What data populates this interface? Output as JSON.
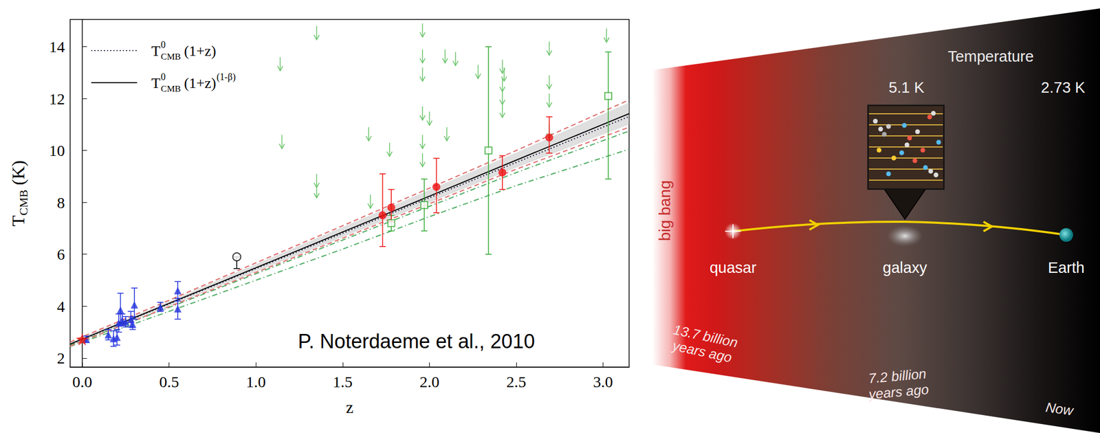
{
  "chart_data": {
    "type": "scatter",
    "x_label": "z",
    "y_label": {
      "base": "T",
      "sub": "CMB",
      "after": "(K)"
    },
    "annotation": "P. Noterdaeme et al., 2010",
    "xlim": [
      -0.07,
      3.15
    ],
    "xticks": [
      {
        "value": 0,
        "label": "0.0"
      },
      {
        "value": 0.5,
        "label": "0.5"
      },
      {
        "value": 1,
        "label": "1.0"
      },
      {
        "value": 1.5,
        "label": "1.5"
      },
      {
        "value": 2,
        "label": "2.0"
      },
      {
        "value": 2.5,
        "label": "2.5"
      },
      {
        "value": 3,
        "label": "3.0"
      }
    ],
    "ylim": [
      1.65,
      15.05
    ],
    "yticks": [
      2,
      4,
      6,
      8,
      10,
      12,
      14
    ],
    "grid": false,
    "legend": "upper left",
    "series": [
      {
        "type": "band",
        "color": "#b8b8b8",
        "x": [
          -0.07,
          0.5,
          1,
          1.5,
          2,
          2.5,
          3.15
        ],
        "low": [
          2.48,
          4.0,
          5.33,
          6.66,
          8.0,
          9.34,
          11.0
        ],
        "high": [
          2.6,
          4.2,
          5.62,
          7.05,
          8.48,
          9.92,
          11.85
        ]
      },
      {
        "type": "line",
        "line_style": "dashdot",
        "color": "#55b06a",
        "x": [
          -0.07,
          0.5,
          1,
          1.5,
          2,
          2.5,
          3.15
        ],
        "values": [
          2.5,
          3.95,
          5.25,
          6.55,
          7.85,
          9.15,
          10.75
        ]
      },
      {
        "type": "line",
        "line_style": "dashdot",
        "color": "#55b06a",
        "x": [
          -0.07,
          0.5,
          1,
          1.5,
          2,
          2.5,
          3.15
        ],
        "values": [
          2.45,
          3.8,
          5.0,
          6.2,
          7.45,
          8.65,
          10.05
        ]
      },
      {
        "type": "line",
        "line_style": "dashed",
        "color": "#e07070",
        "x": [
          -0.07,
          0.5,
          1,
          1.5,
          2,
          2.5,
          3.15
        ],
        "values": [
          2.62,
          4.23,
          5.67,
          7.1,
          8.55,
          10.0,
          11.95
        ]
      },
      {
        "type": "line",
        "line_style": "dashed",
        "color": "#e07070",
        "x": [
          -0.07,
          0.5,
          1,
          1.5,
          2,
          2.5,
          3.15
        ],
        "values": [
          2.46,
          3.98,
          5.3,
          6.62,
          7.95,
          9.28,
          10.9
        ]
      },
      {
        "type": "line",
        "line_style": "dotted",
        "color": "#1a1a40",
        "name": {
          "base": "T",
          "sup": "0",
          "sub": "CMB",
          "after": "(1+z)"
        },
        "x": [
          -0.07,
          0.5,
          1,
          1.5,
          2,
          2.5,
          3.15
        ],
        "values": [
          2.53,
          4.09,
          5.45,
          6.81,
          8.18,
          9.54,
          11.31
        ]
      },
      {
        "type": "line",
        "line_style": "solid",
        "color": "#000000",
        "name": {
          "base": "T",
          "sup": "0",
          "sub": "CMB",
          "after": "(1+z)",
          "after_sup": "(1-β)"
        },
        "x": [
          -0.07,
          0.5,
          1,
          1.5,
          2,
          2.5,
          3.15
        ],
        "values": [
          2.54,
          4.11,
          5.48,
          6.86,
          8.24,
          9.63,
          11.42
        ]
      },
      {
        "type": "upper_limit",
        "marker": "arrow",
        "color": "#6cc46c",
        "x": [
          1.14,
          1.15,
          1.35,
          1.35,
          1.35,
          1.65,
          1.66,
          1.77,
          1.96,
          1.96,
          1.96,
          1.96,
          1.96,
          1.96,
          2.0,
          2.09,
          2.1,
          2.15,
          2.28,
          2.42,
          2.43,
          2.42,
          2.42,
          2.42,
          2.69,
          2.69,
          2.69,
          2.69,
          3.02
        ],
        "values": [
          13.6,
          10.6,
          14.8,
          9.1,
          8.7,
          10.9,
          8.3,
          10.3,
          14.9,
          13.9,
          13.2,
          11.7,
          10.6,
          9.9,
          11.5,
          13.9,
          10.9,
          13.8,
          13.3,
          13.5,
          13.2,
          12.8,
          12.3,
          11.8,
          14.2,
          12.9,
          12.2,
          11.0,
          14.7
        ]
      },
      {
        "type": "scatter",
        "marker": "triangle",
        "color": "#2233dd",
        "x": [
          0.023,
          0.15,
          0.18,
          0.2,
          0.21,
          0.22,
          0.23,
          0.25,
          0.28,
          0.29,
          0.3,
          0.45,
          0.55,
          0.55
        ],
        "values": [
          2.72,
          2.9,
          2.75,
          2.8,
          3.35,
          3.85,
          3.45,
          3.4,
          3.5,
          3.3,
          4.05,
          3.97,
          3.9,
          4.6
        ],
        "low": [
          2.6,
          2.7,
          2.45,
          2.5,
          3.0,
          3.3,
          3.25,
          3.2,
          3.2,
          3.1,
          3.5,
          3.8,
          3.5,
          4.2
        ],
        "high": [
          2.85,
          3.1,
          3.05,
          3.1,
          3.7,
          4.5,
          3.7,
          3.6,
          3.8,
          3.6,
          4.7,
          4.15,
          4.3,
          4.95
        ]
      },
      {
        "type": "scatter",
        "marker": "empty_circle",
        "color": "#000000",
        "x": [
          0.89
        ],
        "values": [
          5.9
        ],
        "low": [
          5.45
        ],
        "high": [
          5.9
        ]
      },
      {
        "type": "scatter",
        "marker": "empty_square",
        "color": "#33aa33",
        "x": [
          1.78,
          1.97,
          2.34,
          3.03
        ],
        "values": [
          7.2,
          7.9,
          10.0,
          12.1
        ],
        "low": [
          6.9,
          6.9,
          6.0,
          8.9
        ],
        "high": [
          7.5,
          8.9,
          14.0,
          13.8
        ]
      },
      {
        "type": "scatter",
        "marker": "circle",
        "color": "#ee1111",
        "x": [
          1.73,
          1.78,
          2.04,
          2.42,
          2.69
        ],
        "values": [
          7.5,
          7.8,
          8.6,
          9.15,
          10.5
        ],
        "low": [
          6.3,
          7.25,
          7.6,
          8.5,
          9.9
        ],
        "high": [
          9.1,
          8.5,
          9.7,
          9.8,
          11.3
        ]
      },
      {
        "type": "scatter",
        "marker": "star",
        "color": "#ee1111",
        "x": [
          0.0
        ],
        "values": [
          2.725
        ]
      }
    ]
  },
  "diagram": {
    "header": "Temperature",
    "temperature_labels": [
      "5.1 K",
      "2.73 K"
    ],
    "origin_label": "big bang",
    "objects": [
      "quasar",
      "galaxy",
      "Earth"
    ],
    "times": [
      "13.7 billion years ago",
      "7.2 billion years ago",
      "Now"
    ]
  }
}
